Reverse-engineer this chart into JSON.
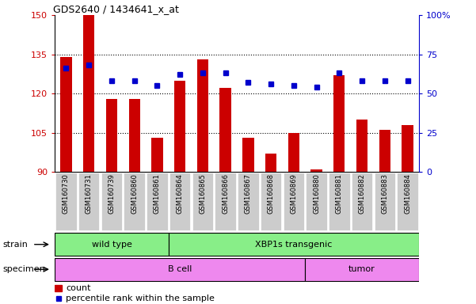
{
  "title": "GDS2640 / 1434641_x_at",
  "samples": [
    "GSM160730",
    "GSM160731",
    "GSM160739",
    "GSM160860",
    "GSM160861",
    "GSM160864",
    "GSM160865",
    "GSM160866",
    "GSM160867",
    "GSM160868",
    "GSM160869",
    "GSM160880",
    "GSM160881",
    "GSM160882",
    "GSM160883",
    "GSM160884"
  ],
  "counts": [
    134,
    150,
    118,
    118,
    103,
    125,
    133,
    122,
    103,
    97,
    105,
    91,
    127,
    110,
    106,
    108
  ],
  "percentiles": [
    66,
    68,
    58,
    58,
    55,
    62,
    63,
    63,
    57,
    56,
    55,
    54,
    63,
    58,
    58,
    58
  ],
  "ymin": 90,
  "ymax": 150,
  "yticks": [
    90,
    105,
    120,
    135,
    150
  ],
  "y2min": 0,
  "y2max": 100,
  "y2ticks": [
    0,
    25,
    50,
    75,
    100
  ],
  "y2labels": [
    "0",
    "25",
    "50",
    "75",
    "100%"
  ],
  "bar_color": "#cc0000",
  "dot_color": "#0000cc",
  "bar_bottom": 90,
  "strain_groups": [
    {
      "label": "wild type",
      "start": 0,
      "end": 4
    },
    {
      "label": "XBP1s transgenic",
      "start": 5,
      "end": 15
    }
  ],
  "specimen_groups": [
    {
      "label": "B cell",
      "start": 0,
      "end": 10
    },
    {
      "label": "tumor",
      "start": 11,
      "end": 15
    }
  ],
  "strain_color": "#88ee88",
  "specimen_color": "#ee88ee",
  "tick_label_bg": "#cccccc"
}
